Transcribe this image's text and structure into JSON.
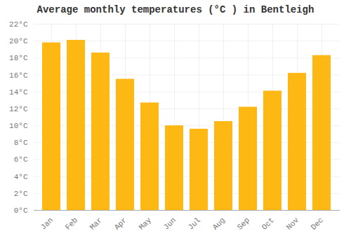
{
  "chart_data": {
    "type": "bar",
    "title": "Average monthly temperatures (°C ) in Bentleigh",
    "categories": [
      "Jan",
      "Feb",
      "Mar",
      "Apr",
      "May",
      "Jun",
      "Jul",
      "Aug",
      "Sep",
      "Oct",
      "Nov",
      "Dec"
    ],
    "values": [
      19.8,
      20.1,
      18.6,
      15.5,
      12.7,
      10.0,
      9.6,
      10.5,
      12.2,
      14.1,
      16.2,
      18.3
    ],
    "color": "#FDB813",
    "ylim": [
      0,
      22
    ],
    "yticks": [
      {
        "value": 0,
        "label": "0°C"
      },
      {
        "value": 2,
        "label": "2°C"
      },
      {
        "value": 4,
        "label": "4°C"
      },
      {
        "value": 6,
        "label": "6°C"
      },
      {
        "value": 8,
        "label": "8°C"
      },
      {
        "value": 10,
        "label": "10°C"
      },
      {
        "value": 12,
        "label": "12°C"
      },
      {
        "value": 14,
        "label": "14°C"
      },
      {
        "value": 16,
        "label": "16°C"
      },
      {
        "value": 18,
        "label": "18°C"
      },
      {
        "value": 20,
        "label": "20°C"
      },
      {
        "value": 22,
        "label": "22°C"
      }
    ],
    "grid": true
  }
}
